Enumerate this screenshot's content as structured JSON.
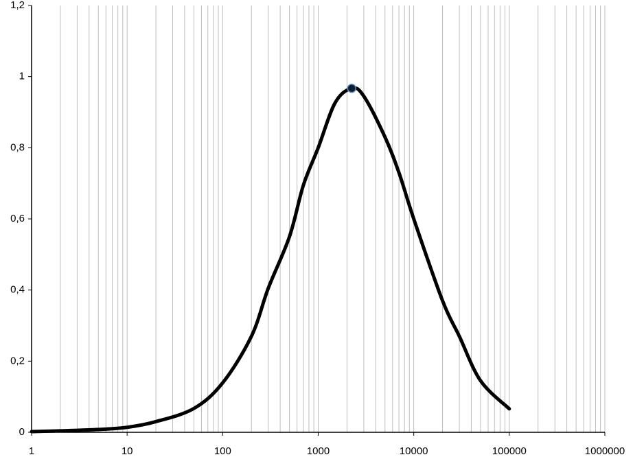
{
  "chart_data": {
    "type": "line",
    "xscale": "log",
    "minor_grid": true,
    "xlim": [
      1,
      1000000
    ],
    "xticks": [
      1,
      10,
      100,
      1000,
      10000,
      100000,
      1000000
    ],
    "ylim": [
      0,
      1.2
    ],
    "yticks": [
      0,
      {
        "value": 0.2,
        "label": "0,2"
      },
      {
        "value": 0.4,
        "label": "0,4"
      },
      {
        "value": 0.6,
        "label": "0,6"
      },
      {
        "value": 0.8,
        "label": "0,8"
      },
      1,
      {
        "value": 1.2,
        "label": "1,2"
      }
    ],
    "series": [
      {
        "color": "#000000",
        "x": [
          1,
          2,
          5,
          10,
          20,
          50,
          100,
          200,
          300,
          500,
          700,
          1000,
          1500,
          2240,
          3000,
          5000,
          7000,
          10000,
          20000,
          30000,
          50000,
          100000
        ],
        "values": [
          0.002,
          0.004,
          0.008,
          0.014,
          0.03,
          0.067,
          0.139,
          0.27,
          0.405,
          0.55,
          0.695,
          0.8,
          0.926,
          0.967,
          0.945,
          0.83,
          0.73,
          0.6,
          0.37,
          0.27,
          0.145,
          0.066
        ]
      },
      {
        "type": "scatter",
        "color": "#0d1f2d",
        "edge": "#5b8fc9",
        "x": [
          2240
        ],
        "values": [
          0.967
        ]
      }
    ]
  }
}
